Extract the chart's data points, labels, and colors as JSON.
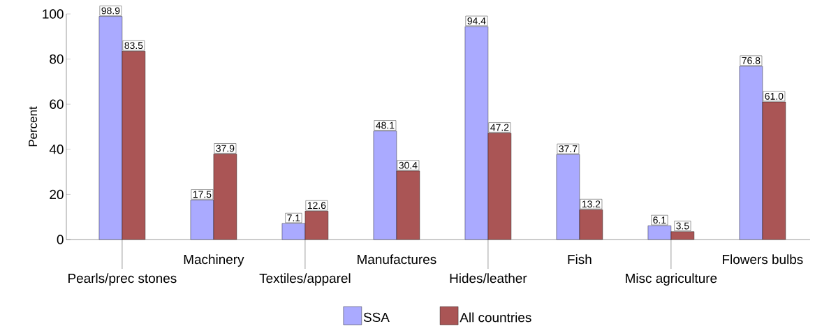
{
  "chart_data": {
    "type": "bar",
    "ylabel": "Percent",
    "categories": [
      "Pearls/prec stones",
      "Machinery",
      "Textiles/apparel",
      "Manufactures",
      "Hides/leather",
      "Fish",
      "Misc agriculture",
      "Flowers bulbs"
    ],
    "series": [
      {
        "name": "SSA",
        "color": "#aaaaff",
        "values": [
          98.9,
          17.5,
          7.1,
          48.1,
          94.4,
          37.7,
          6.1,
          76.8
        ],
        "value_labels": [
          "98.9",
          "17.5",
          "7.1",
          "48.1",
          "94.4",
          "37.7",
          "6.1",
          "76.8"
        ]
      },
      {
        "name": "All countries",
        "color": "#aa5555",
        "values": [
          83.5,
          37.9,
          12.6,
          30.4,
          47.2,
          13.2,
          3.5,
          61.0
        ],
        "value_labels": [
          "83.5",
          "37.9",
          "12.6",
          "30.4",
          "47.2",
          "13.2",
          "3.5",
          "61.0"
        ]
      }
    ],
    "ylim": [
      0,
      100
    ],
    "yticks": [
      0,
      20,
      40,
      60,
      80,
      100
    ],
    "grid": false,
    "legend": "bottom"
  }
}
